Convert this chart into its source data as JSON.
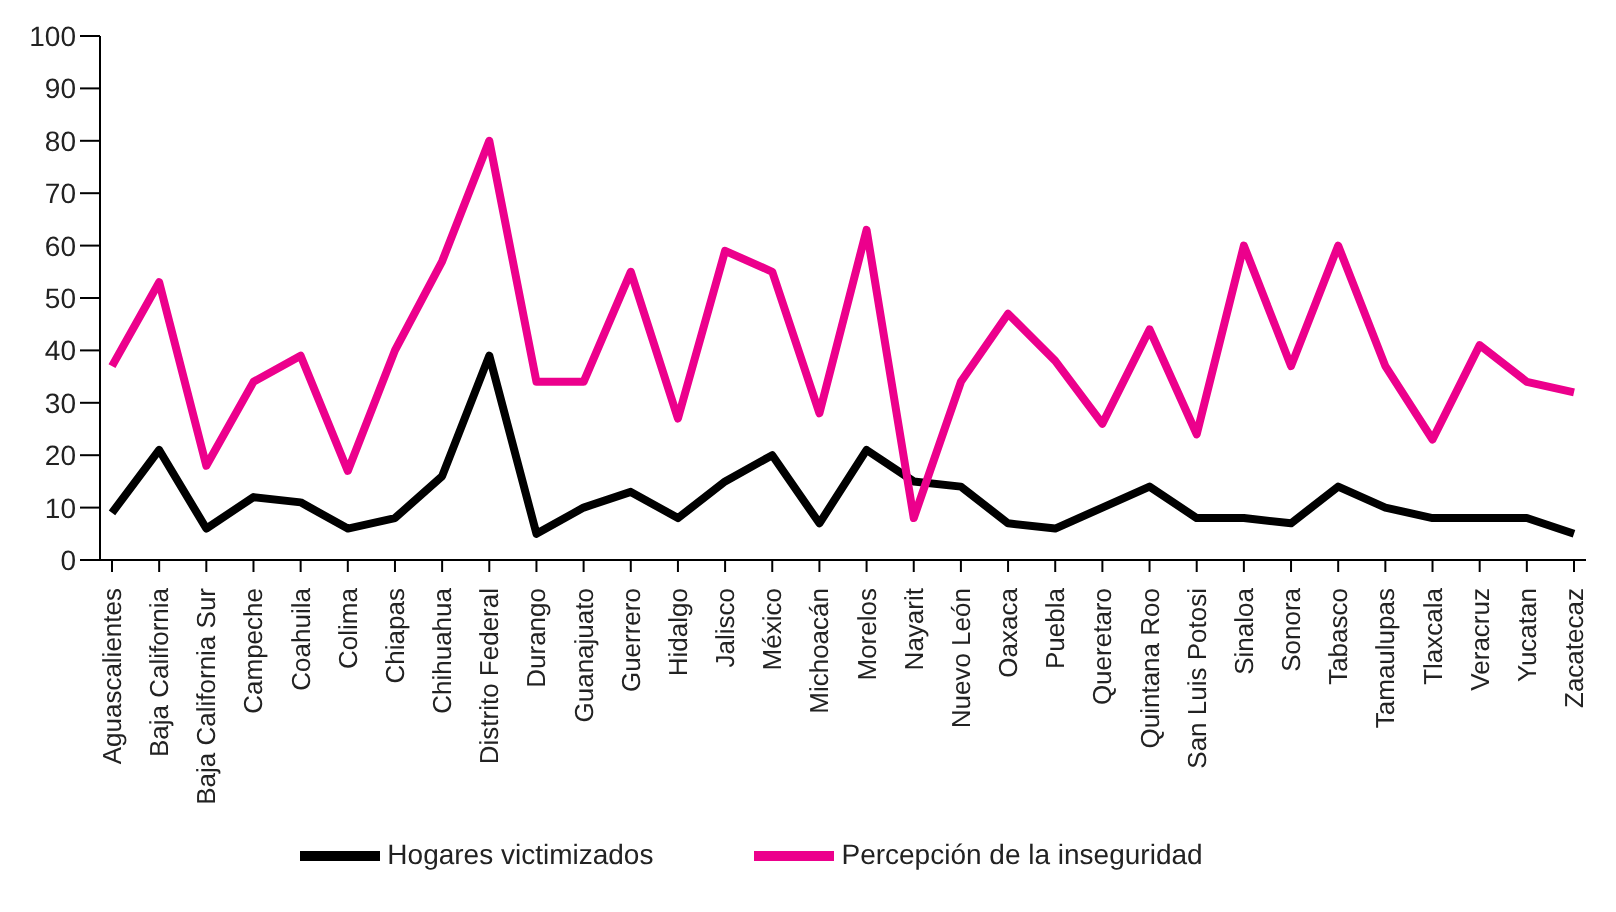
{
  "chart_data": {
    "type": "line",
    "categories": [
      "Aguascalientes",
      "Baja California",
      "Baja California Sur",
      "Campeche",
      "Coahuila",
      "Colima",
      "Chiapas",
      "Chihuahua",
      "Distrito Federal",
      "Durango",
      "Guanajuato",
      "Guerrero",
      "Hidalgo",
      "Jalisco",
      "México",
      "Michoacán",
      "Morelos",
      "Nayarit",
      "Nuevo León",
      "Oaxaca",
      "Puebla",
      "Queretaro",
      "Quintana Roo",
      "San Luis Potosi",
      "Sinaloa",
      "Sonora",
      "Tabasco",
      "Tamaulupas",
      "Tlaxcala",
      "Veracruz",
      "Yucatan",
      "Zacatecaz"
    ],
    "series": [
      {
        "name": "Hogares victimizados",
        "color": "#000000",
        "values": [
          9,
          21,
          6,
          12,
          11,
          6,
          8,
          16,
          39,
          5,
          10,
          13,
          8,
          15,
          20,
          7,
          21,
          15,
          14,
          7,
          6,
          10,
          14,
          8,
          8,
          7,
          14,
          10,
          8,
          8,
          8,
          5
        ]
      },
      {
        "name": "Percepción de la inseguridad",
        "color": "#ec008c",
        "values": [
          37,
          53,
          18,
          34,
          39,
          17,
          40,
          57,
          80,
          34,
          34,
          55,
          27,
          59,
          55,
          28,
          63,
          8,
          34,
          47,
          38,
          26,
          44,
          24,
          60,
          37,
          60,
          37,
          23,
          41,
          34,
          32
        ]
      }
    ],
    "ylim": [
      0,
      100
    ],
    "yticks": [
      0,
      10,
      20,
      30,
      40,
      50,
      60,
      70,
      80,
      90,
      100
    ],
    "grid": false,
    "legend": "bottom",
    "marker": "none",
    "line_style": "solid"
  }
}
